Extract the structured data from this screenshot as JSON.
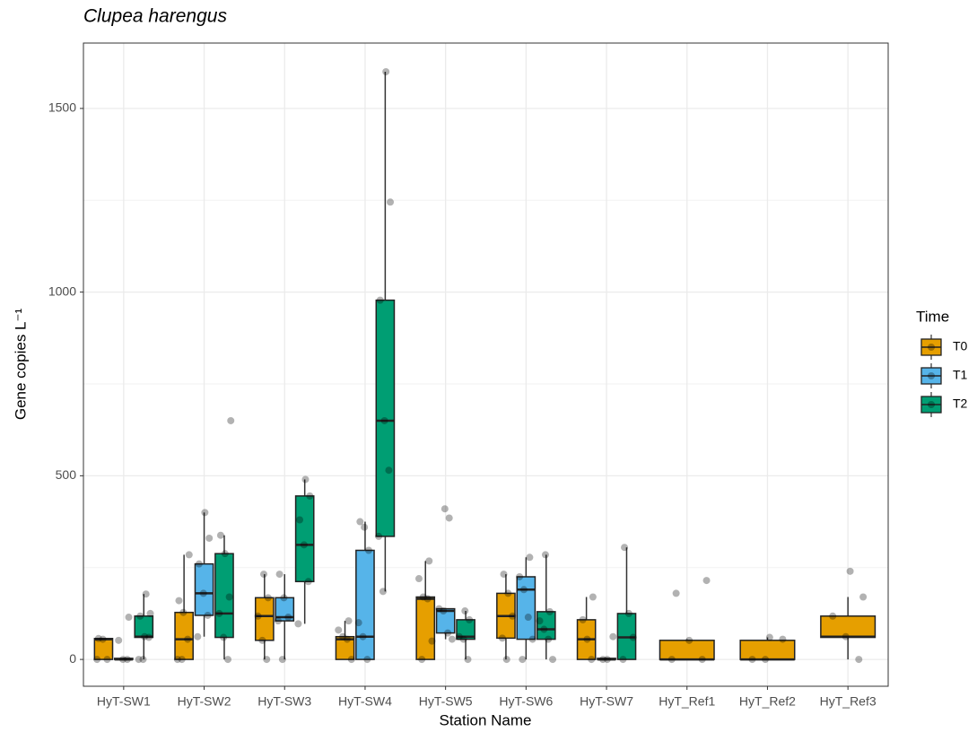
{
  "chart_data": {
    "type": "boxplot",
    "title": "Clupea harengus",
    "x_label": "Station Name",
    "y_label": "Gene copies L⁻¹",
    "categories": [
      "HyT-SW1",
      "HyT-SW2",
      "HyT-SW3",
      "HyT-SW4",
      "HyT-SW5",
      "HyT-SW6",
      "HyT-SW7",
      "HyT_Ref1",
      "HyT_Ref2",
      "HyT_Ref3"
    ],
    "legend_title": "Time",
    "legend_position": "right",
    "grid": true,
    "ylim": [
      -73,
      1678
    ],
    "yticks": [
      0,
      500,
      1000,
      1500
    ],
    "y_minor_grid": [
      250,
      750,
      1250
    ],
    "series": [
      {
        "name": "T0",
        "color": "#E69F00",
        "boxes": [
          {
            "min": 0,
            "q1": 0,
            "median": 55,
            "q3": 57,
            "max": 57
          },
          {
            "min": 0,
            "q1": 0,
            "median": 55,
            "q3": 128,
            "max": 285
          },
          {
            "min": 0,
            "q1": 52,
            "median": 118,
            "q3": 168,
            "max": 232
          },
          {
            "min": 0,
            "q1": 0,
            "median": 55,
            "q3": 62,
            "max": 105
          },
          {
            "min": 0,
            "q1": 0,
            "median": 165,
            "q3": 170,
            "max": 268
          },
          {
            "min": 0,
            "q1": 58,
            "median": 118,
            "q3": 180,
            "max": 232
          },
          {
            "min": 0,
            "q1": 0,
            "median": 55,
            "q3": 108,
            "max": 170
          },
          {
            "min": 0,
            "q1": 0,
            "median": 0,
            "q3": 52,
            "max": 55
          },
          {
            "min": 0,
            "q1": 0,
            "median": 0,
            "q3": 52,
            "max": 60
          },
          {
            "min": 0,
            "q1": 60,
            "median": 62,
            "q3": 118,
            "max": 170
          }
        ],
        "points": [
          [
            0,
            0,
            55,
            57
          ],
          [
            0,
            0,
            55,
            128,
            160,
            285
          ],
          [
            0,
            52,
            118,
            168,
            232
          ],
          [
            0,
            55,
            62,
            80,
            105
          ],
          [
            0,
            50,
            165,
            170,
            220,
            268
          ],
          [
            0,
            58,
            118,
            180,
            232
          ],
          [
            0,
            55,
            108,
            170
          ],
          [
            0,
            0,
            52,
            180,
            215
          ],
          [
            0,
            0,
            55,
            60
          ],
          [
            0,
            62,
            118,
            170,
            240
          ]
        ]
      },
      {
        "name": "T1",
        "color": "#56B4E9",
        "boxes": [
          {
            "min": 0,
            "q1": 0,
            "median": 0,
            "q3": 3,
            "max": 5
          },
          {
            "min": 62,
            "q1": 120,
            "median": 180,
            "q3": 260,
            "max": 400
          },
          {
            "min": 0,
            "q1": 105,
            "median": 115,
            "q3": 168,
            "max": 232
          },
          {
            "min": 0,
            "q1": 0,
            "median": 62,
            "q3": 297,
            "max": 375
          },
          {
            "min": 55,
            "q1": 72,
            "median": 132,
            "q3": 138,
            "max": 140
          },
          {
            "min": 0,
            "q1": 55,
            "median": 190,
            "q3": 225,
            "max": 278
          },
          {
            "min": 0,
            "q1": 0,
            "median": 0,
            "q3": 3,
            "max": 5
          },
          null,
          null,
          null
        ],
        "points": [
          [
            0,
            0,
            52,
            115
          ],
          [
            62,
            120,
            180,
            260,
            330,
            400
          ],
          [
            0,
            105,
            115,
            168,
            232
          ],
          [
            0,
            62,
            100,
            297,
            360,
            375
          ],
          [
            55,
            72,
            132,
            138,
            385,
            410
          ],
          [
            0,
            55,
            115,
            190,
            225,
            278
          ],
          [
            0,
            0,
            62
          ],
          null,
          null,
          null
        ]
      },
      {
        "name": "T2",
        "color": "#009E73",
        "boxes": [
          {
            "min": 0,
            "q1": 60,
            "median": 62,
            "q3": 118,
            "max": 178
          },
          {
            "min": 0,
            "q1": 60,
            "median": 125,
            "q3": 288,
            "max": 338
          },
          {
            "min": 97,
            "q1": 212,
            "median": 312,
            "q3": 445,
            "max": 490
          },
          {
            "min": 185,
            "q1": 335,
            "median": 650,
            "q3": 978,
            "max": 1600
          },
          {
            "min": 0,
            "q1": 55,
            "median": 62,
            "q3": 108,
            "max": 132
          },
          {
            "min": 0,
            "q1": 55,
            "median": 82,
            "q3": 130,
            "max": 285
          },
          {
            "min": 0,
            "q1": 0,
            "median": 60,
            "q3": 125,
            "max": 305
          },
          null,
          null,
          null
        ],
        "points": [
          [
            0,
            0,
            60,
            62,
            118,
            125,
            178
          ],
          [
            0,
            60,
            125,
            170,
            288,
            338,
            650
          ],
          [
            97,
            212,
            312,
            380,
            445,
            490
          ],
          [
            185,
            335,
            515,
            650,
            978,
            1245,
            1600
          ],
          [
            0,
            55,
            62,
            108,
            132
          ],
          [
            0,
            55,
            82,
            105,
            130,
            285
          ],
          [
            0,
            60,
            125,
            305
          ],
          null,
          null,
          null
        ]
      }
    ]
  }
}
